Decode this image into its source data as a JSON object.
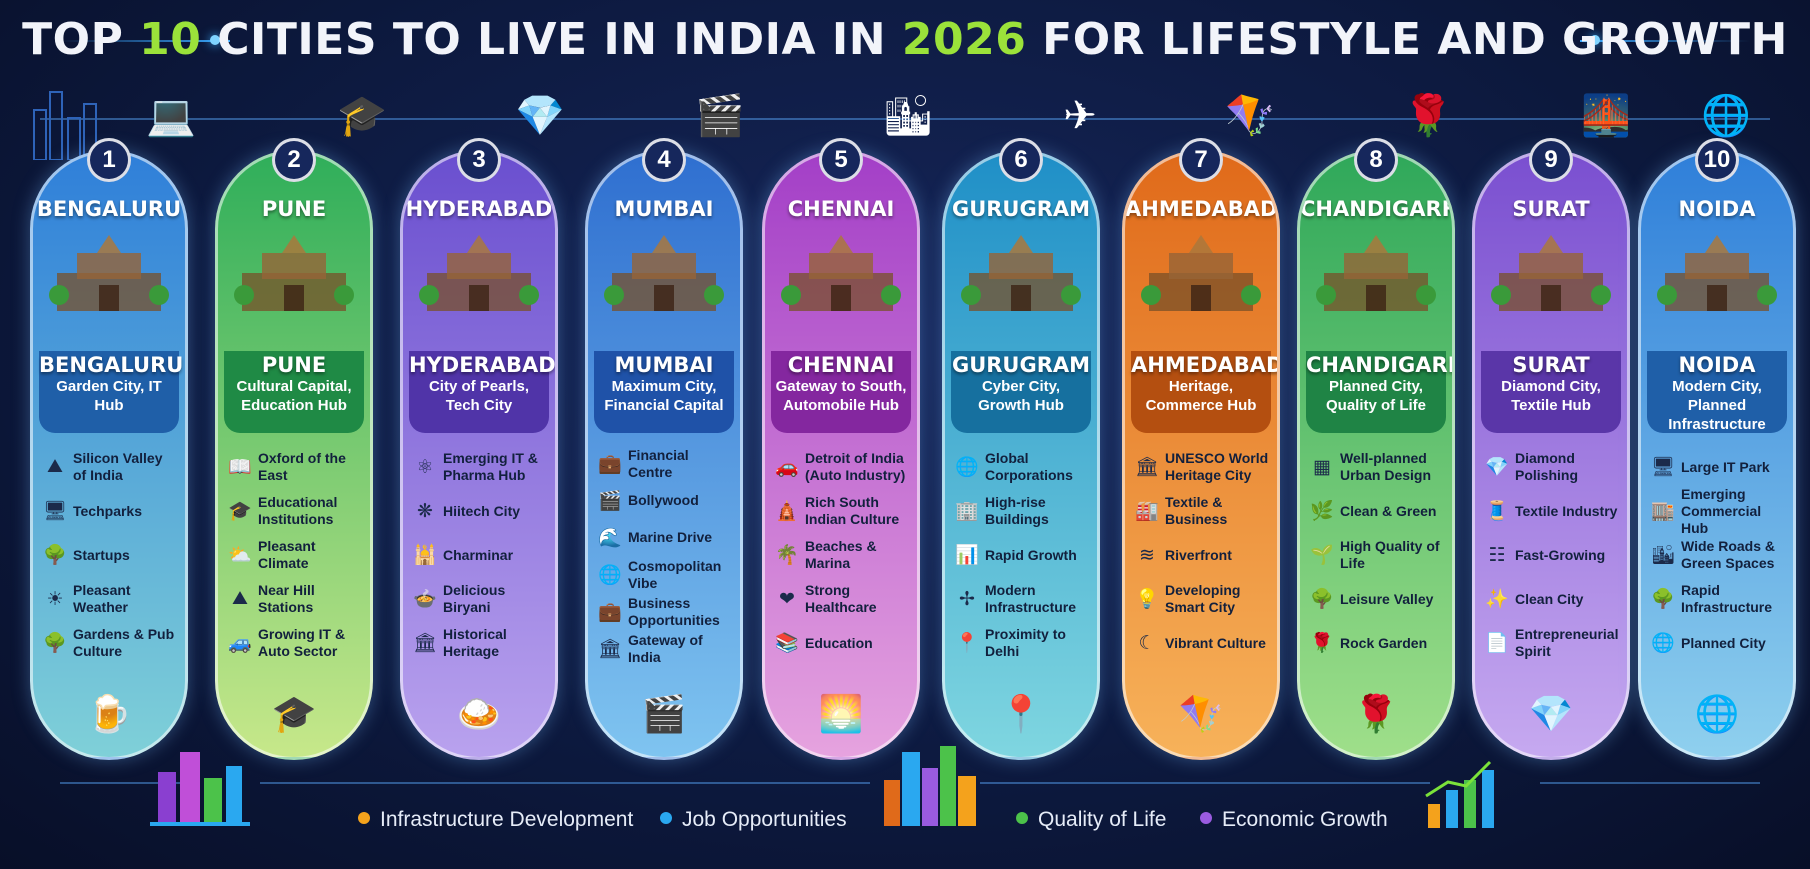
{
  "title": {
    "pre": "TOP ",
    "num": "10",
    "mid": " CITIES TO LIVE IN INDIA IN ",
    "year": "2026",
    "post": " FOR LIFESTYLE AND GROWTH"
  },
  "accent_colors": {
    "title_highlight": "#9be23a",
    "background": "#0b1535",
    "glow": "#3aa8ff"
  },
  "cities": [
    {
      "rank": "1",
      "name": "BENGALURU",
      "tag": "Garden City, IT Hub",
      "color_top": "#2f7fd9",
      "color_bottom": "#7fd0d8",
      "plaque": "#1f5fa8",
      "top_icon": "laptop-icon",
      "top_glyph": "💻",
      "bottom_icon": "beer-mug-icon",
      "bottom_glyph": "🍺",
      "landmark_icon": "palace-icon",
      "features": [
        {
          "icon": "valley-icon",
          "glyph": "⛰",
          "text": "Silicon Valley of India"
        },
        {
          "icon": "monitor-icon",
          "glyph": "🖥",
          "text": "Techparks"
        },
        {
          "icon": "tree-icon",
          "glyph": "🌳",
          "text": "Startups"
        },
        {
          "icon": "sun-icon",
          "glyph": "☀",
          "text": "Pleasant Weather"
        },
        {
          "icon": "tree-icon",
          "glyph": "🌳",
          "text": "Gardens & Pub Culture"
        }
      ]
    },
    {
      "rank": "2",
      "name": "PUNE",
      "tag": "Cultural Capital, Education Hub",
      "color_top": "#2fae5a",
      "color_bottom": "#c7e88a",
      "plaque": "#1f8a45",
      "top_icon": "graduation-cap-icon",
      "top_glyph": "🎓",
      "bottom_icon": "graduation-cap-icon",
      "bottom_glyph": "🎓",
      "landmark_icon": "fort-icon",
      "features": [
        {
          "icon": "book-icon",
          "glyph": "📖",
          "text": "Oxford of the East"
        },
        {
          "icon": "graduation-cap-icon",
          "glyph": "🎓",
          "text": "Educational Institutions"
        },
        {
          "icon": "sun-cloud-icon",
          "glyph": "⛅",
          "text": "Pleasant Climate"
        },
        {
          "icon": "mountain-icon",
          "glyph": "⛰",
          "text": "Near Hill Stations"
        },
        {
          "icon": "car-icon",
          "glyph": "🚙",
          "text": "Growing IT & Auto Sector"
        }
      ]
    },
    {
      "rank": "3",
      "name": "HYDERABAD",
      "tag": "City of Pearls, Tech City",
      "color_top": "#6a4fcf",
      "color_bottom": "#b9a2ee",
      "plaque": "#5034a8",
      "top_icon": "pearl-icon",
      "top_glyph": "💎",
      "bottom_icon": "biryani-icon",
      "bottom_glyph": "🍛",
      "landmark_icon": "charminar-icon",
      "features": [
        {
          "icon": "molecule-icon",
          "glyph": "⚛",
          "text": "Emerging IT & Pharma Hub"
        },
        {
          "icon": "network-icon",
          "glyph": "❋",
          "text": "Hiitech City"
        },
        {
          "icon": "minaret-icon",
          "glyph": "🕌",
          "text": "Charminar"
        },
        {
          "icon": "food-icon",
          "glyph": "🍲",
          "text": "Delicious Biryani"
        },
        {
          "icon": "temple-icon",
          "glyph": "🏛",
          "text": "Historical Heritage"
        }
      ]
    },
    {
      "rank": "4",
      "name": "MUMBAI",
      "tag": "Maximum City, Financial Capital",
      "color_top": "#2f6fd0",
      "color_bottom": "#7fc4f0",
      "plaque": "#1f52a8",
      "top_icon": "clapperboard-icon",
      "top_glyph": "🎬",
      "bottom_icon": "clapperboard-icon",
      "bottom_glyph": "🎬",
      "landmark_icon": "gateway-icon",
      "features": [
        {
          "icon": "briefcase-icon",
          "glyph": "💼",
          "text": "Financial Centre"
        },
        {
          "icon": "clapperboard-icon",
          "glyph": "🎬",
          "text": "Bollywood"
        },
        {
          "icon": "waves-icon",
          "glyph": "🌊",
          "text": "Marine Drive"
        },
        {
          "icon": "globe-icon",
          "glyph": "🌐",
          "text": "Cosmopolitan Vibe"
        },
        {
          "icon": "briefcase-icon",
          "glyph": "💼",
          "text": "Business Opportunities"
        },
        {
          "icon": "gateway-icon",
          "glyph": "🏛",
          "text": "Gateway of India"
        }
      ]
    },
    {
      "rank": "5",
      "name": "CHENNAI",
      "tag": "Gateway to South, Automobile Hub",
      "color_top": "#a33fc7",
      "color_bottom": "#e6a3df",
      "plaque": "#84279f",
      "top_icon": "skyscraper-icon",
      "top_glyph": "🏙",
      "bottom_icon": "sunset-sea-icon",
      "bottom_glyph": "🌅",
      "landmark_icon": "temple-gopuram-icon",
      "features": [
        {
          "icon": "car-icon",
          "glyph": "🚗",
          "text": "Detroit of India (Auto Industry)"
        },
        {
          "icon": "temple-icon",
          "glyph": "🛕",
          "text": "Rich South Indian Culture"
        },
        {
          "icon": "palm-icon",
          "glyph": "🌴",
          "text": "Beaches & Marina"
        },
        {
          "icon": "heart-icon",
          "glyph": "❤",
          "text": "Strong Healthcare"
        },
        {
          "icon": "desk-icon",
          "glyph": "📚",
          "text": "Education"
        }
      ]
    },
    {
      "rank": "6",
      "name": "GURUGRAM",
      "tag": "Cyber City, Growth Hub",
      "color_top": "#1f8fc7",
      "color_bottom": "#7fd6e0",
      "plaque": "#16709f",
      "top_icon": "airplane-icon",
      "top_glyph": "✈",
      "bottom_icon": "location-pin-icon",
      "bottom_glyph": "📍",
      "landmark_icon": "skyline-icon",
      "features": [
        {
          "icon": "globe-icon",
          "glyph": "🌐",
          "text": "Global Corporations"
        },
        {
          "icon": "building-icon",
          "glyph": "🏢",
          "text": "High-rise Buildings"
        },
        {
          "icon": "bar-chart-icon",
          "glyph": "📊",
          "text": "Rapid Growth"
        },
        {
          "icon": "network-icon",
          "glyph": "✢",
          "text": "Modern Infrastructure"
        },
        {
          "icon": "location-pin-icon",
          "glyph": "📍",
          "text": "Proximity to Delhi"
        }
      ]
    },
    {
      "rank": "7",
      "name": "AHMEDABAD",
      "tag": "Heritage, Commerce Hub",
      "color_top": "#e06a1a",
      "color_bottom": "#f7b25a",
      "plaque": "#b44f10",
      "top_icon": "kite-icon",
      "top_glyph": "🪁",
      "bottom_icon": "kite-icon",
      "bottom_glyph": "🪁",
      "landmark_icon": "heritage-icon",
      "features": [
        {
          "icon": "temple-icon",
          "glyph": "🏛",
          "text": "UNESCO World Heritage City"
        },
        {
          "icon": "factory-icon",
          "glyph": "🏭",
          "text": "Textile & Business"
        },
        {
          "icon": "river-icon",
          "glyph": "≋",
          "text": "Riverfront"
        },
        {
          "icon": "bulb-icon",
          "glyph": "💡",
          "text": "Developing Smart City"
        },
        {
          "icon": "swirl-icon",
          "glyph": "☾",
          "text": "Vibrant Culture"
        }
      ]
    },
    {
      "rank": "8",
      "name": "CHANDIGARH",
      "tag": "Planned City, Quality of Life",
      "color_top": "#2fa85a",
      "color_bottom": "#9fdf8a",
      "plaque": "#1f8445",
      "top_icon": "rose-icon",
      "top_glyph": "🌹",
      "bottom_icon": "rose-icon",
      "bottom_glyph": "🌹",
      "landmark_icon": "open-hand-icon",
      "features": [
        {
          "icon": "grid-icon",
          "glyph": "▦",
          "text": "Well-planned Urban Design"
        },
        {
          "icon": "leaf-hand-icon",
          "glyph": "🌿",
          "text": "Clean & Green"
        },
        {
          "icon": "plant-icon",
          "glyph": "🌱",
          "text": "High Quality of Life"
        },
        {
          "icon": "tree-icon",
          "glyph": "🌳",
          "text": "Leisure Valley"
        },
        {
          "icon": "rose-icon",
          "glyph": "🌹",
          "text": "Rock Garden"
        }
      ]
    },
    {
      "rank": "9",
      "name": "SURAT",
      "tag": "Diamond City, Textile Hub",
      "color_top": "#7a4fd0",
      "color_bottom": "#c6a9f0",
      "plaque": "#5a36a8",
      "top_icon": "bridge-icon",
      "top_glyph": "🌉",
      "bottom_icon": "diamond-icon",
      "bottom_glyph": "💎",
      "landmark_icon": "diamond-bridge-icon",
      "features": [
        {
          "icon": "diamond-icon",
          "glyph": "💎",
          "text": "Diamond Polishing"
        },
        {
          "icon": "fabric-icon",
          "glyph": "🧵",
          "text": "Textile Industry"
        },
        {
          "icon": "fence-icon",
          "glyph": "☷",
          "text": "Fast-Growing"
        },
        {
          "icon": "sparkle-icon",
          "glyph": "✨",
          "text": "Clean City"
        },
        {
          "icon": "document-icon",
          "glyph": "📄",
          "text": "Entrepreneurial Spirit"
        }
      ]
    },
    {
      "rank": "10",
      "name": "NOIDA",
      "tag": "Modern City, Planned Infrastructure",
      "color_top": "#2f7fd9",
      "color_bottom": "#8fd0ee",
      "plaque": "#1f5fa8",
      "top_icon": "globe-icon",
      "top_glyph": "🌐",
      "bottom_icon": "globe-icon",
      "bottom_glyph": "🌐",
      "landmark_icon": "skyline-icon",
      "features": [
        {
          "icon": "monitor-icon",
          "glyph": "🖥",
          "text": "Large IT Park"
        },
        {
          "icon": "shop-icon",
          "glyph": "🏬",
          "text": "Emerging Commercial Hub"
        },
        {
          "icon": "road-icon",
          "glyph": "🏙",
          "text": "Wide Roads & Green Spaces"
        },
        {
          "icon": "tree-icon",
          "glyph": "🌳",
          "text": "Rapid Infrastructure"
        },
        {
          "icon": "globe-icon",
          "glyph": "🌐",
          "text": "Planned City"
        }
      ]
    }
  ],
  "legend": [
    {
      "label": "Infrastructure Development",
      "color": "#f4a21c"
    },
    {
      "label": "Job Opportunities",
      "color": "#2aa8f0"
    },
    {
      "label": "Quality of Life",
      "color": "#4cc24a"
    },
    {
      "label": "Economic Growth",
      "color": "#9a5be0"
    }
  ]
}
